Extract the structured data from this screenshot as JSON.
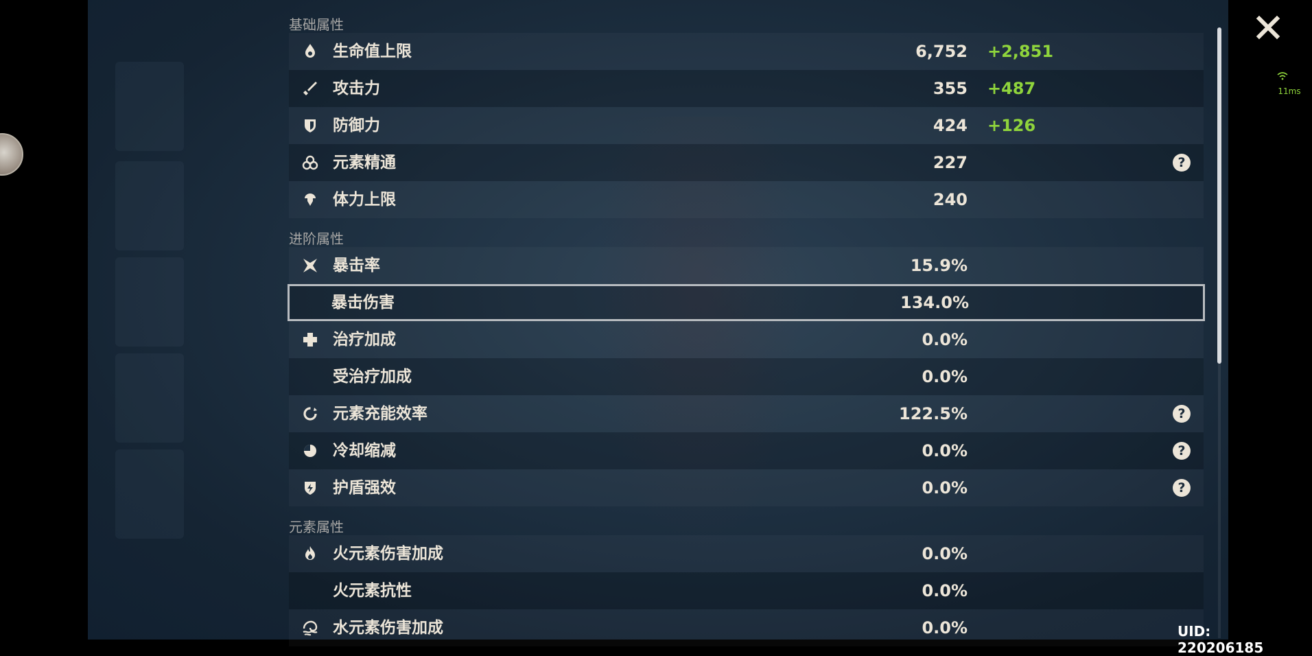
{
  "sections": [
    {
      "title": "基础属性",
      "rows": [
        {
          "icon": "water-drop-icon",
          "label": "生命值上限",
          "value": "6,752",
          "bonus": "+2,851",
          "help": false
        },
        {
          "icon": "sword-icon",
          "label": "攻击力",
          "value": "355",
          "bonus": "+487",
          "help": false
        },
        {
          "icon": "shield-icon",
          "label": "防御力",
          "value": "424",
          "bonus": "+126",
          "help": false
        },
        {
          "icon": "elemental-mastery-icon",
          "label": "元素精通",
          "value": "227",
          "bonus": "",
          "help": true
        },
        {
          "icon": "stamina-icon",
          "label": "体力上限",
          "value": "240",
          "bonus": "",
          "help": false
        }
      ]
    },
    {
      "title": "进阶属性",
      "rows": [
        {
          "icon": "crit-star-icon",
          "label": "暴击率",
          "value": "15.9%",
          "bonus": "",
          "help": false
        },
        {
          "icon": "",
          "label": "暴击伤害",
          "value": "134.0%",
          "bonus": "",
          "help": false,
          "selected": true
        },
        {
          "icon": "healing-cross-icon",
          "label": "治疗加成",
          "value": "0.0%",
          "bonus": "",
          "help": false
        },
        {
          "icon": "",
          "label": "受治疗加成",
          "value": "0.0%",
          "bonus": "",
          "help": false
        },
        {
          "icon": "energy-recharge-icon",
          "label": "元素充能效率",
          "value": "122.5%",
          "bonus": "",
          "help": true
        },
        {
          "icon": "cooldown-icon",
          "label": "冷却缩减",
          "value": "0.0%",
          "bonus": "",
          "help": true
        },
        {
          "icon": "shield-strength-icon",
          "label": "护盾强效",
          "value": "0.0%",
          "bonus": "",
          "help": true
        }
      ]
    },
    {
      "title": "元素属性",
      "rows": [
        {
          "icon": "pyro-icon",
          "label": "火元素伤害加成",
          "value": "0.0%",
          "bonus": "",
          "help": false
        },
        {
          "icon": "",
          "label": "火元素抗性",
          "value": "0.0%",
          "bonus": "",
          "help": false
        },
        {
          "icon": "hydro-icon",
          "label": "水元素伤害加成",
          "value": "0.0%",
          "bonus": "",
          "help": false
        }
      ]
    }
  ],
  "help_glyph": "?",
  "uid": "UID: 220206185",
  "ping": "11ms",
  "colors": {
    "bonus": "#8fd43c",
    "text": "#ece5d8",
    "section": "#a8a7a5"
  }
}
